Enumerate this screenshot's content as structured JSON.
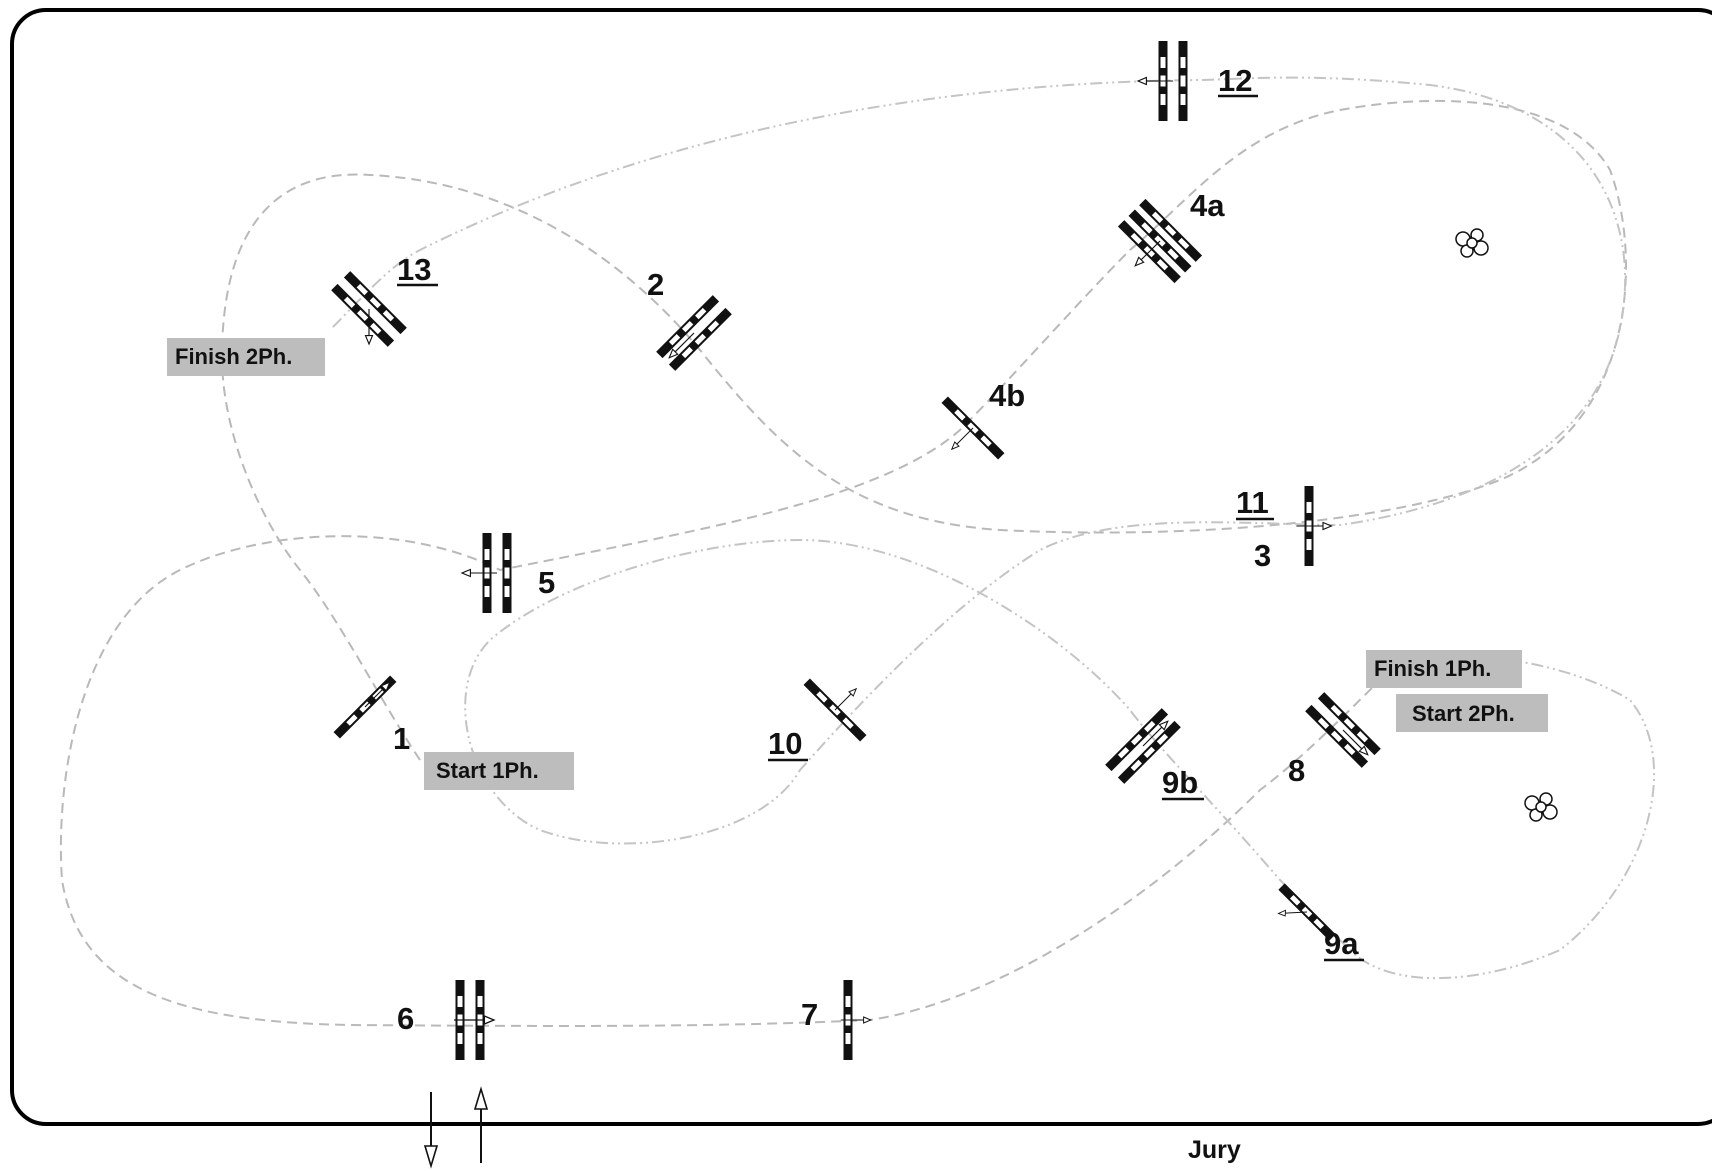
{
  "labels": {
    "o1": "1",
    "o2": "2",
    "o3": "3",
    "o4a": "4a",
    "o4b": "4b",
    "o5": "5",
    "o6": "6",
    "o7": "7",
    "o8": "8",
    "o9a": "9a",
    "o9b": "9b",
    "o10": "10",
    "o11": "11",
    "o12": "12",
    "o13": "13"
  },
  "tags": {
    "start_1ph": "Start 1Ph.",
    "finish_1ph": "Finish 1Ph.",
    "start_2ph": "Start 2Ph.",
    "finish_2ph": "Finish 2Ph."
  },
  "jury": "Jury",
  "colors": {
    "obstacle": "#111111",
    "tag_bg": "#bdbdbd",
    "track": "#bcbcbc"
  }
}
